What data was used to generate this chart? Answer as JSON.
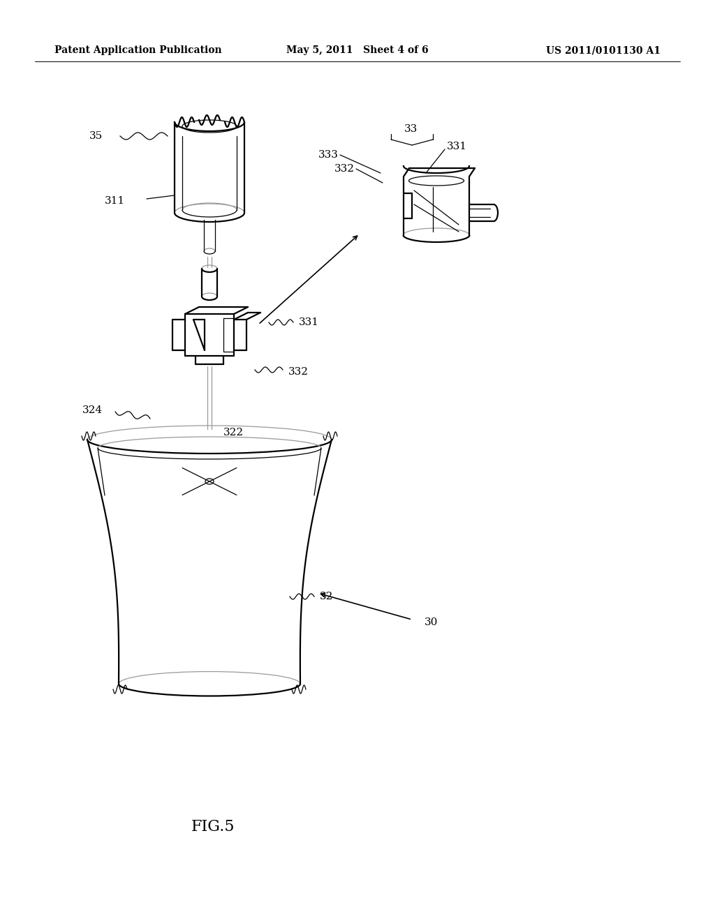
{
  "bg_color": "#ffffff",
  "header_left": "Patent Application Publication",
  "header_center": "May 5, 2011   Sheet 4 of 6",
  "header_right": "US 2011/0101130 A1",
  "figure_label": "FIG.5",
  "lw": 1.6,
  "lw_thin": 0.9,
  "color": "#000000",
  "gray": "#999999"
}
